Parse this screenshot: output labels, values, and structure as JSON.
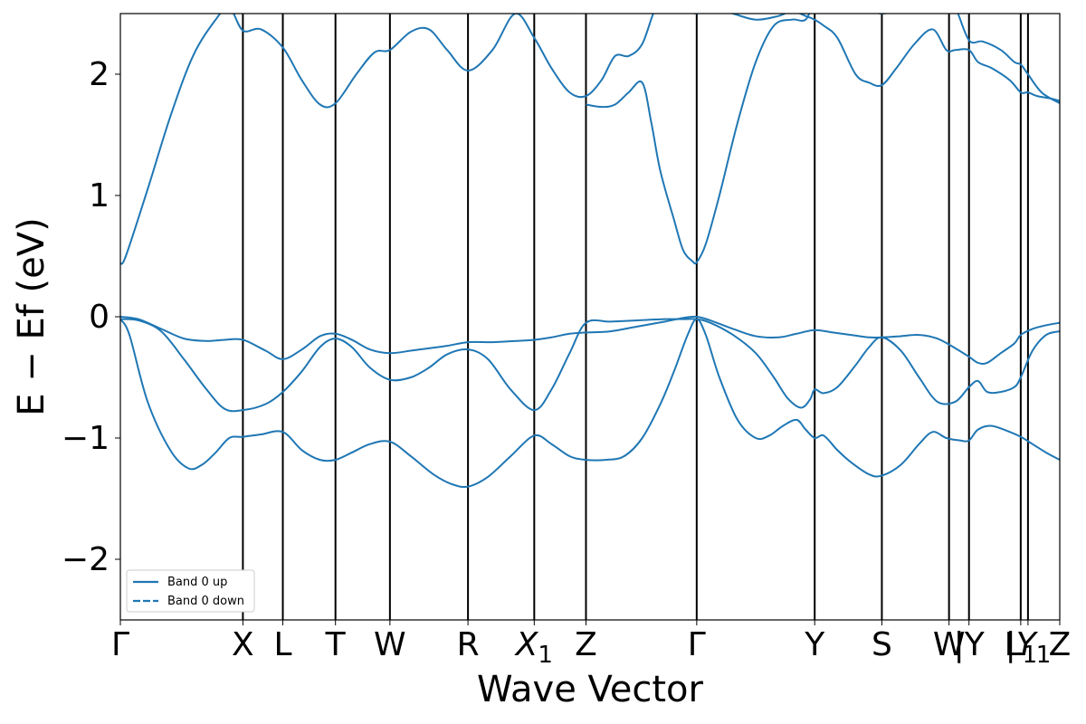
{
  "chart_data": {
    "type": "line",
    "xlabel": "Wave Vector",
    "ylabel": "E − Ef (eV)",
    "ylim": [
      -2.5,
      2.5
    ],
    "yticks": [
      {
        "value": 2,
        "label": "2"
      },
      {
        "value": 1,
        "label": "1"
      },
      {
        "value": 0,
        "label": "0"
      },
      {
        "value": -1,
        "label": "−1"
      },
      {
        "value": -2,
        "label": "−2"
      }
    ],
    "xlim": [
      0,
      10.35
    ],
    "kpoints": [
      {
        "label": "Γ",
        "x": 0
      },
      {
        "label": "X",
        "x": 1.35
      },
      {
        "label": "L",
        "x": 1.79
      },
      {
        "label": "T",
        "x": 2.37
      },
      {
        "label": "W",
        "x": 2.97
      },
      {
        "label": "R",
        "x": 3.83
      },
      {
        "label": "X1",
        "x": 4.56
      },
      {
        "label": "Z",
        "x": 5.13
      },
      {
        "label": "Γ",
        "x": 6.35
      },
      {
        "label": "Y",
        "x": 7.65
      },
      {
        "label": "S",
        "x": 8.39
      },
      {
        "label": "W",
        "x": 9.13
      },
      {
        "label": "|Y",
        "x": 9.35
      },
      {
        "label": "L1",
        "x": 9.92
      },
      {
        "label": "|Y1",
        "x": 10.0
      },
      {
        "label": "Z",
        "x": 10.35
      }
    ],
    "legend": {
      "position": "lower-left",
      "entries": [
        {
          "label": "Band 0 up",
          "style": "solid"
        },
        {
          "label": "Band 0 down",
          "style": "dashed"
        }
      ]
    },
    "line_color": "#1f77b4",
    "series": [
      {
        "x": [
          0,
          0.06,
          0.3,
          0.55,
          0.8,
          1.05,
          1.2,
          1.35,
          1.55,
          1.79,
          2.0,
          2.2,
          2.37,
          2.6,
          2.8,
          2.97,
          3.2,
          3.4,
          3.6,
          3.83,
          4.1,
          4.35,
          4.56,
          4.75,
          4.95,
          5.13,
          5.3,
          5.45,
          5.6,
          5.75,
          5.9,
          6.05,
          6.2,
          6.35,
          6.5,
          6.75,
          7.0,
          7.25,
          7.4,
          7.55,
          7.65,
          7.75,
          7.9,
          8.1,
          8.25,
          8.39,
          8.55,
          8.75,
          8.95,
          9.1,
          9.2,
          9.35,
          9.45,
          9.6,
          9.8,
          9.92,
          10.0,
          10.1,
          10.25,
          10.35
        ],
        "y": [
          0.44,
          0.5,
          1.05,
          1.65,
          2.15,
          2.45,
          2.55,
          2.36,
          2.37,
          2.22,
          1.95,
          1.75,
          1.76,
          2.0,
          2.18,
          2.2,
          2.35,
          2.37,
          2.2,
          2.03,
          2.2,
          2.5,
          2.3,
          2.05,
          1.85,
          1.82,
          1.95,
          2.15,
          2.15,
          2.25,
          2.55,
          2.65,
          2.55,
          2.5,
          2.55,
          2.5,
          2.45,
          2.48,
          2.52,
          2.48,
          2.45,
          2.4,
          2.3,
          2.0,
          1.93,
          1.91,
          2.05,
          2.25,
          2.37,
          2.2,
          2.2,
          2.2,
          2.1,
          2.05,
          1.95,
          1.85,
          1.85,
          1.82,
          1.8,
          1.78
        ]
      },
      {
        "x": [
          5.13,
          5.3,
          5.45,
          5.6,
          5.75,
          5.85,
          5.95,
          6.1,
          6.2,
          6.3,
          6.35,
          6.45,
          6.6,
          6.8,
          7.0,
          7.2,
          7.4,
          7.55,
          7.65,
          7.75,
          7.9,
          8.1,
          8.25,
          8.39,
          8.55,
          8.75,
          8.95,
          9.1,
          9.2,
          9.35,
          9.5,
          9.7,
          9.85,
          9.92,
          10.0,
          10.15,
          10.35
        ],
        "y": [
          1.75,
          1.73,
          1.75,
          1.85,
          1.93,
          1.6,
          1.2,
          0.8,
          0.55,
          0.46,
          0.45,
          0.6,
          1.0,
          1.6,
          2.1,
          2.4,
          2.45,
          2.45,
          2.6,
          2.6,
          2.55,
          2.55,
          2.52,
          2.5,
          2.52,
          2.55,
          2.6,
          2.6,
          2.55,
          2.28,
          2.27,
          2.2,
          2.1,
          2.08,
          2.0,
          1.85,
          1.76
        ]
      },
      {
        "x": [
          0,
          0.2,
          0.45,
          0.7,
          0.95,
          1.15,
          1.35,
          1.6,
          1.79,
          2.0,
          2.2,
          2.37,
          2.55,
          2.75,
          2.97,
          3.2,
          3.4,
          3.6,
          3.83,
          4.1,
          4.35,
          4.56,
          4.75,
          4.95,
          5.13,
          5.4,
          5.7,
          6.0,
          6.2,
          6.35,
          6.5,
          6.75,
          7.0,
          7.25,
          7.45,
          7.65,
          7.85,
          8.05,
          8.25,
          8.39,
          8.6,
          8.8,
          9.0,
          9.2,
          9.35,
          9.45,
          9.55,
          9.7,
          9.85,
          9.92,
          10.05,
          10.2,
          10.35
        ],
        "y": [
          0,
          -0.02,
          -0.1,
          -0.18,
          -0.2,
          -0.19,
          -0.19,
          -0.28,
          -0.35,
          -0.27,
          -0.16,
          -0.14,
          -0.19,
          -0.27,
          -0.3,
          -0.28,
          -0.26,
          -0.24,
          -0.21,
          -0.21,
          -0.2,
          -0.19,
          -0.17,
          -0.14,
          -0.13,
          -0.12,
          -0.08,
          -0.04,
          -0.01,
          0,
          -0.03,
          -0.1,
          -0.16,
          -0.17,
          -0.14,
          -0.11,
          -0.13,
          -0.15,
          -0.17,
          -0.17,
          -0.16,
          -0.15,
          -0.18,
          -0.26,
          -0.33,
          -0.38,
          -0.38,
          -0.3,
          -0.22,
          -0.15,
          -0.1,
          -0.07,
          -0.05
        ]
      },
      {
        "x": [
          0,
          0.2,
          0.45,
          0.7,
          0.95,
          1.15,
          1.35,
          1.6,
          1.79,
          2.0,
          2.2,
          2.37,
          2.55,
          2.75,
          2.97,
          3.2,
          3.4,
          3.6,
          3.83,
          4.05,
          4.3,
          4.56,
          4.75,
          4.95,
          5.13,
          5.4,
          5.7,
          6.0,
          6.2,
          6.35,
          6.5,
          6.75,
          7.0,
          7.2,
          7.35,
          7.5,
          7.6,
          7.65,
          7.75,
          7.9,
          8.1,
          8.25,
          8.39,
          8.6,
          8.8,
          9.0,
          9.2,
          9.35,
          9.45,
          9.55,
          9.7,
          9.85,
          9.92,
          10.05,
          10.2,
          10.35
        ],
        "y": [
          -0.02,
          -0.03,
          -0.12,
          -0.35,
          -0.6,
          -0.76,
          -0.77,
          -0.72,
          -0.62,
          -0.45,
          -0.25,
          -0.18,
          -0.25,
          -0.42,
          -0.52,
          -0.5,
          -0.42,
          -0.31,
          -0.27,
          -0.35,
          -0.6,
          -0.77,
          -0.6,
          -0.3,
          -0.05,
          -0.04,
          -0.03,
          -0.02,
          -0.02,
          -0.02,
          -0.05,
          -0.15,
          -0.3,
          -0.5,
          -0.67,
          -0.75,
          -0.68,
          -0.6,
          -0.63,
          -0.58,
          -0.4,
          -0.25,
          -0.17,
          -0.28,
          -0.5,
          -0.7,
          -0.7,
          -0.58,
          -0.53,
          -0.62,
          -0.62,
          -0.58,
          -0.5,
          -0.28,
          -0.15,
          -0.12
        ]
      },
      {
        "x": [
          0,
          0.1,
          0.3,
          0.55,
          0.75,
          0.9,
          1.05,
          1.2,
          1.35,
          1.55,
          1.79,
          2.0,
          2.2,
          2.37,
          2.55,
          2.75,
          2.97,
          3.2,
          3.45,
          3.65,
          3.83,
          4.05,
          4.3,
          4.56,
          4.75,
          4.95,
          5.13,
          5.35,
          5.55,
          5.75,
          5.95,
          6.1,
          6.25,
          6.35,
          6.45,
          6.6,
          6.8,
          7.0,
          7.15,
          7.3,
          7.45,
          7.55,
          7.65,
          7.75,
          7.9,
          8.05,
          8.25,
          8.39,
          8.6,
          8.8,
          8.95,
          9.1,
          9.25,
          9.35,
          9.45,
          9.6,
          9.8,
          9.92,
          10.05,
          10.2,
          10.35
        ],
        "y": [
          -0.02,
          -0.15,
          -0.7,
          -1.1,
          -1.25,
          -1.22,
          -1.12,
          -1.0,
          -0.99,
          -0.97,
          -0.95,
          -1.1,
          -1.18,
          -1.18,
          -1.12,
          -1.05,
          -1.03,
          -1.15,
          -1.3,
          -1.38,
          -1.4,
          -1.32,
          -1.15,
          -0.98,
          -1.05,
          -1.15,
          -1.18,
          -1.18,
          -1.15,
          -1.0,
          -0.72,
          -0.45,
          -0.15,
          -0.02,
          -0.15,
          -0.5,
          -0.85,
          -1.0,
          -0.98,
          -0.9,
          -0.85,
          -0.93,
          -1.0,
          -0.98,
          -1.1,
          -1.2,
          -1.3,
          -1.31,
          -1.22,
          -1.05,
          -0.95,
          -1.0,
          -1.02,
          -1.02,
          -0.93,
          -0.9,
          -0.95,
          -0.99,
          -1.05,
          -1.12,
          -1.18
        ]
      }
    ]
  }
}
